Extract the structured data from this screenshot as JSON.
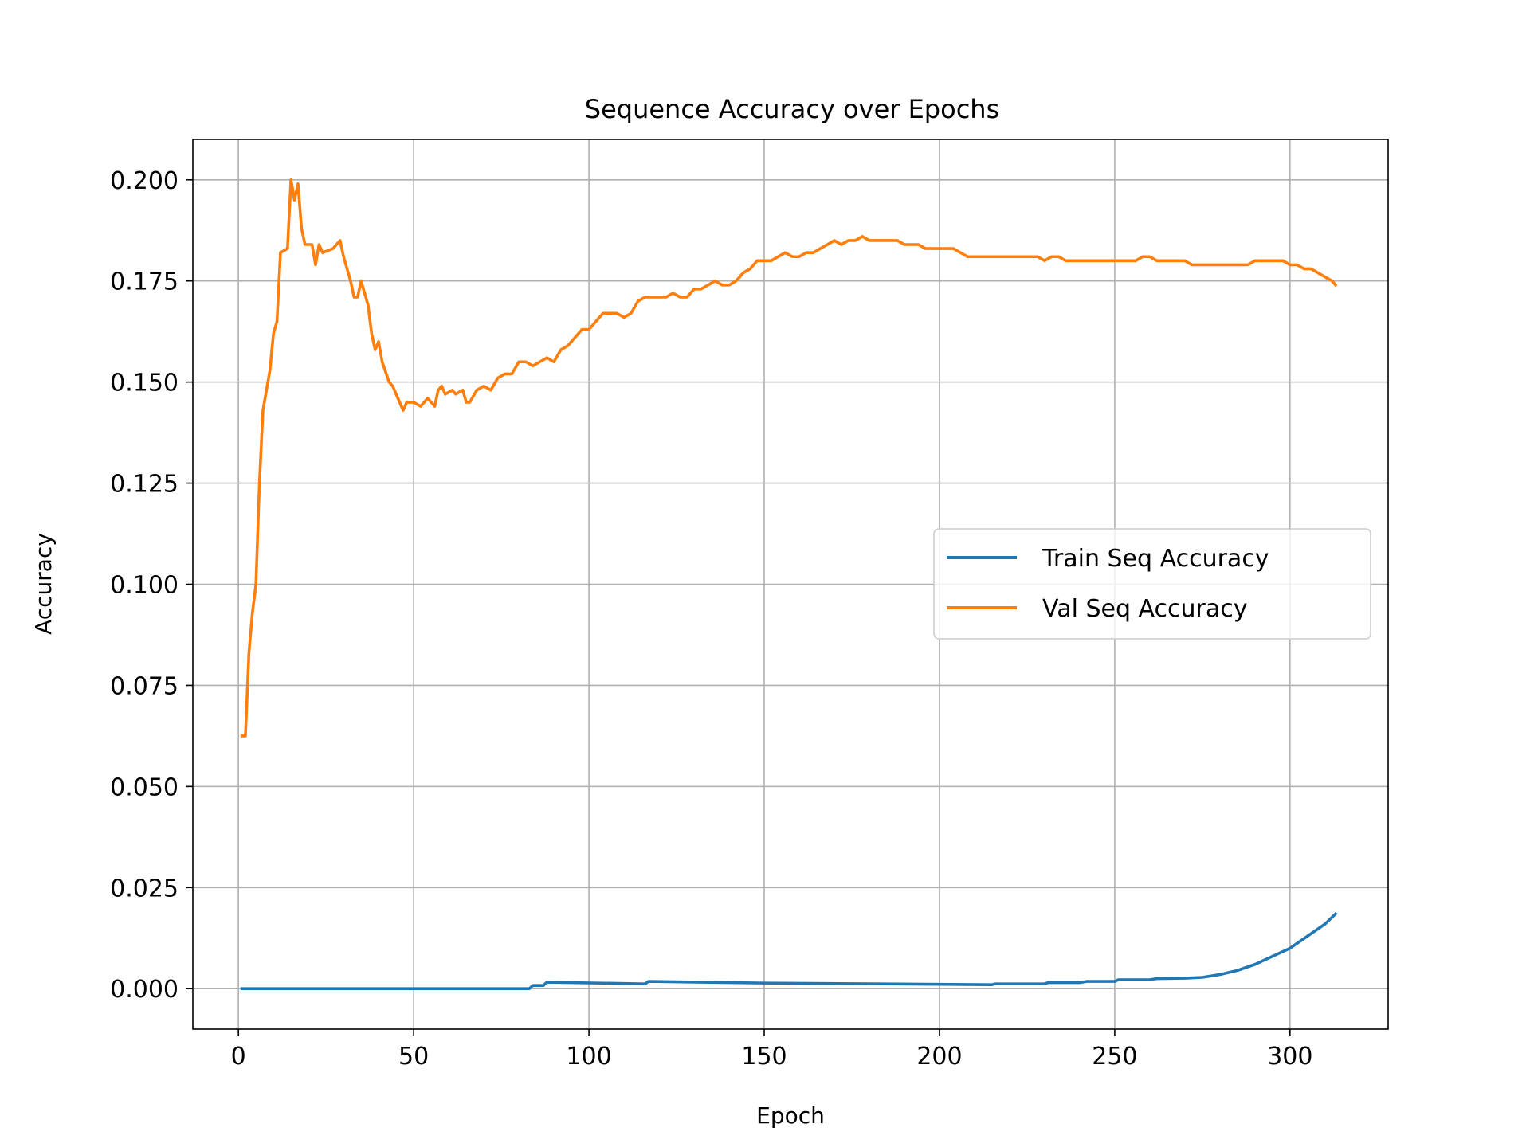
{
  "chart_data": {
    "type": "line",
    "title": "Sequence Accuracy over Epochs",
    "xlabel": "Epoch",
    "ylabel": "Accuracy",
    "xlim": [
      -13,
      328
    ],
    "ylim": [
      -0.01,
      0.21
    ],
    "xticks": [
      0,
      50,
      100,
      150,
      200,
      250,
      300
    ],
    "yticks": [
      0.0,
      0.025,
      0.05,
      0.075,
      0.1,
      0.125,
      0.15,
      0.175,
      0.2
    ],
    "xtick_labels": [
      "0",
      "50",
      "100",
      "150",
      "200",
      "250",
      "300"
    ],
    "ytick_labels": [
      "0.000",
      "0.025",
      "0.050",
      "0.075",
      "0.100",
      "0.125",
      "0.150",
      "0.175",
      "0.200"
    ],
    "grid": true,
    "legend_position": "center-right",
    "series": [
      {
        "name": "Train Seq Accuracy",
        "color": "#1f77b4",
        "points": [
          [
            1,
            0.0
          ],
          [
            20,
            0.0
          ],
          [
            40,
            0.0
          ],
          [
            60,
            0.0
          ],
          [
            83,
            0.0
          ],
          [
            84,
            0.0008
          ],
          [
            87,
            0.0008
          ],
          [
            88,
            0.0016
          ],
          [
            116,
            0.0012
          ],
          [
            117,
            0.0018
          ],
          [
            150,
            0.0014
          ],
          [
            215,
            0.001
          ],
          [
            216,
            0.0012
          ],
          [
            230,
            0.0012
          ],
          [
            231,
            0.0015
          ],
          [
            240,
            0.0015
          ],
          [
            242,
            0.0018
          ],
          [
            250,
            0.0018
          ],
          [
            251,
            0.0022
          ],
          [
            260,
            0.0022
          ],
          [
            262,
            0.0025
          ],
          [
            270,
            0.0026
          ],
          [
            275,
            0.0028
          ],
          [
            280,
            0.0035
          ],
          [
            285,
            0.0045
          ],
          [
            290,
            0.006
          ],
          [
            295,
            0.008
          ],
          [
            300,
            0.01
          ],
          [
            305,
            0.013
          ],
          [
            310,
            0.016
          ],
          [
            313,
            0.0185
          ]
        ]
      },
      {
        "name": "Val Seq Accuracy",
        "color": "#ff7f0e",
        "points": [
          [
            1,
            0.0625
          ],
          [
            2,
            0.0625
          ],
          [
            3,
            0.083
          ],
          [
            4,
            0.093
          ],
          [
            5,
            0.1
          ],
          [
            6,
            0.125
          ],
          [
            7,
            0.143
          ],
          [
            8,
            0.148
          ],
          [
            9,
            0.153
          ],
          [
            10,
            0.162
          ],
          [
            11,
            0.165
          ],
          [
            12,
            0.182
          ],
          [
            14,
            0.183
          ],
          [
            15,
            0.2
          ],
          [
            16,
            0.195
          ],
          [
            17,
            0.199
          ],
          [
            18,
            0.188
          ],
          [
            19,
            0.184
          ],
          [
            21,
            0.184
          ],
          [
            22,
            0.179
          ],
          [
            23,
            0.184
          ],
          [
            24,
            0.182
          ],
          [
            27,
            0.183
          ],
          [
            29,
            0.185
          ],
          [
            30,
            0.181
          ],
          [
            32,
            0.175
          ],
          [
            33,
            0.171
          ],
          [
            34,
            0.171
          ],
          [
            35,
            0.175
          ],
          [
            37,
            0.169
          ],
          [
            38,
            0.162
          ],
          [
            39,
            0.158
          ],
          [
            40,
            0.16
          ],
          [
            41,
            0.155
          ],
          [
            43,
            0.15
          ],
          [
            44,
            0.149
          ],
          [
            46,
            0.145
          ],
          [
            47,
            0.143
          ],
          [
            48,
            0.145
          ],
          [
            50,
            0.145
          ],
          [
            52,
            0.144
          ],
          [
            54,
            0.146
          ],
          [
            55,
            0.145
          ],
          [
            56,
            0.144
          ],
          [
            57,
            0.148
          ],
          [
            58,
            0.149
          ],
          [
            59,
            0.147
          ],
          [
            61,
            0.148
          ],
          [
            62,
            0.147
          ],
          [
            64,
            0.148
          ],
          [
            65,
            0.145
          ],
          [
            66,
            0.145
          ],
          [
            68,
            0.148
          ],
          [
            70,
            0.149
          ],
          [
            72,
            0.148
          ],
          [
            74,
            0.151
          ],
          [
            76,
            0.152
          ],
          [
            78,
            0.152
          ],
          [
            80,
            0.155
          ],
          [
            82,
            0.155
          ],
          [
            84,
            0.154
          ],
          [
            86,
            0.155
          ],
          [
            88,
            0.156
          ],
          [
            90,
            0.155
          ],
          [
            92,
            0.158
          ],
          [
            94,
            0.159
          ],
          [
            96,
            0.161
          ],
          [
            98,
            0.163
          ],
          [
            100,
            0.163
          ],
          [
            102,
            0.165
          ],
          [
            104,
            0.167
          ],
          [
            106,
            0.167
          ],
          [
            108,
            0.167
          ],
          [
            110,
            0.166
          ],
          [
            112,
            0.167
          ],
          [
            114,
            0.17
          ],
          [
            116,
            0.171
          ],
          [
            118,
            0.171
          ],
          [
            120,
            0.171
          ],
          [
            122,
            0.171
          ],
          [
            124,
            0.172
          ],
          [
            126,
            0.171
          ],
          [
            128,
            0.171
          ],
          [
            130,
            0.173
          ],
          [
            132,
            0.173
          ],
          [
            134,
            0.174
          ],
          [
            136,
            0.175
          ],
          [
            138,
            0.174
          ],
          [
            140,
            0.174
          ],
          [
            142,
            0.175
          ],
          [
            144,
            0.177
          ],
          [
            146,
            0.178
          ],
          [
            148,
            0.18
          ],
          [
            150,
            0.18
          ],
          [
            152,
            0.18
          ],
          [
            154,
            0.181
          ],
          [
            156,
            0.182
          ],
          [
            158,
            0.181
          ],
          [
            160,
            0.181
          ],
          [
            162,
            0.182
          ],
          [
            164,
            0.182
          ],
          [
            166,
            0.183
          ],
          [
            168,
            0.184
          ],
          [
            170,
            0.185
          ],
          [
            172,
            0.184
          ],
          [
            174,
            0.185
          ],
          [
            176,
            0.185
          ],
          [
            178,
            0.186
          ],
          [
            180,
            0.185
          ],
          [
            182,
            0.185
          ],
          [
            184,
            0.185
          ],
          [
            186,
            0.185
          ],
          [
            188,
            0.185
          ],
          [
            190,
            0.184
          ],
          [
            192,
            0.184
          ],
          [
            194,
            0.184
          ],
          [
            196,
            0.183
          ],
          [
            198,
            0.183
          ],
          [
            200,
            0.183
          ],
          [
            202,
            0.183
          ],
          [
            204,
            0.183
          ],
          [
            206,
            0.182
          ],
          [
            208,
            0.181
          ],
          [
            210,
            0.181
          ],
          [
            212,
            0.181
          ],
          [
            214,
            0.181
          ],
          [
            216,
            0.181
          ],
          [
            218,
            0.181
          ],
          [
            220,
            0.181
          ],
          [
            222,
            0.181
          ],
          [
            224,
            0.181
          ],
          [
            226,
            0.181
          ],
          [
            228,
            0.181
          ],
          [
            230,
            0.18
          ],
          [
            232,
            0.181
          ],
          [
            234,
            0.181
          ],
          [
            236,
            0.18
          ],
          [
            238,
            0.18
          ],
          [
            240,
            0.18
          ],
          [
            242,
            0.18
          ],
          [
            244,
            0.18
          ],
          [
            246,
            0.18
          ],
          [
            248,
            0.18
          ],
          [
            250,
            0.18
          ],
          [
            252,
            0.18
          ],
          [
            254,
            0.18
          ],
          [
            256,
            0.18
          ],
          [
            258,
            0.181
          ],
          [
            260,
            0.181
          ],
          [
            262,
            0.18
          ],
          [
            264,
            0.18
          ],
          [
            266,
            0.18
          ],
          [
            268,
            0.18
          ],
          [
            270,
            0.18
          ],
          [
            272,
            0.179
          ],
          [
            274,
            0.179
          ],
          [
            276,
            0.179
          ],
          [
            278,
            0.179
          ],
          [
            280,
            0.179
          ],
          [
            282,
            0.179
          ],
          [
            284,
            0.179
          ],
          [
            286,
            0.179
          ],
          [
            288,
            0.179
          ],
          [
            290,
            0.18
          ],
          [
            292,
            0.18
          ],
          [
            294,
            0.18
          ],
          [
            296,
            0.18
          ],
          [
            298,
            0.18
          ],
          [
            300,
            0.179
          ],
          [
            302,
            0.179
          ],
          [
            304,
            0.178
          ],
          [
            306,
            0.178
          ],
          [
            308,
            0.177
          ],
          [
            310,
            0.176
          ],
          [
            312,
            0.175
          ],
          [
            313,
            0.174
          ]
        ]
      }
    ]
  }
}
